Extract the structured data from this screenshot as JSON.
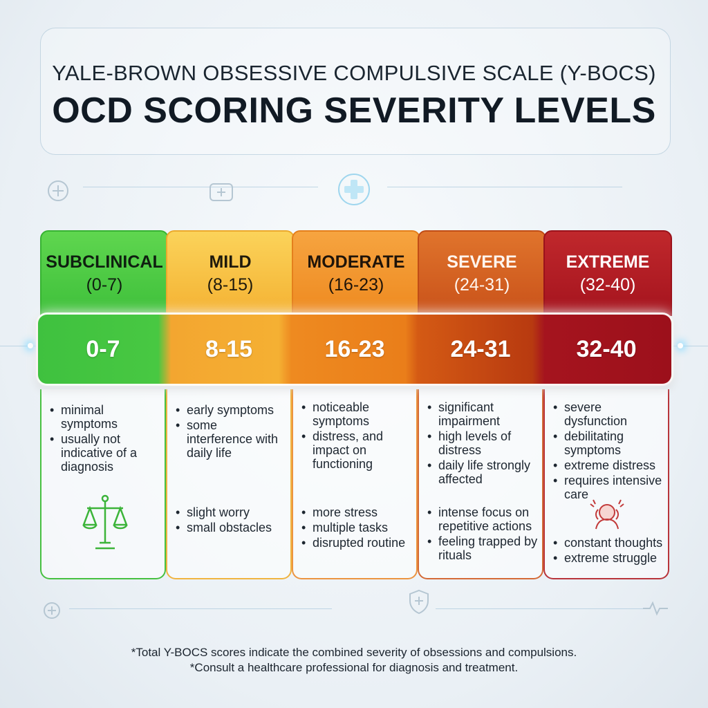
{
  "header": {
    "title_line1": "YALE-BROWN OBSESSIVE COMPULSIVE SCALE (Y-BOCS)",
    "title_line2": "OCD SCORING SEVERITY LEVELS"
  },
  "levels": [
    {
      "name": "SUBCLINICAL",
      "range_label": "(0-7)",
      "score": "0-7",
      "color": "#43c43f",
      "symptoms_top": [
        "minimal symptoms",
        "usually not indicative of a diagnosis"
      ],
      "symptoms_bottom": [],
      "icon": "balance-scale-icon"
    },
    {
      "name": "MILD",
      "range_label": "(8-15)",
      "score": "8-15",
      "color": "#f4b233",
      "symptoms_top": [
        "early symptoms",
        "some interference with daily life"
      ],
      "symptoms_bottom": [
        "slight worry",
        "small obstacles"
      ]
    },
    {
      "name": "MODERATE",
      "range_label": "(16-23)",
      "score": "16-23",
      "color": "#ee8a20",
      "symptoms_top": [
        "noticeable symptoms",
        "distress, and impact on functioning"
      ],
      "symptoms_bottom": [
        "more stress",
        "multiple tasks",
        "disrupted routine"
      ]
    },
    {
      "name": "SEVERE",
      "range_label": "(24-31)",
      "score": "24-31",
      "color": "#d45a14",
      "symptoms_top": [
        "significant impairment",
        "high levels of distress",
        "daily life strongly affected"
      ],
      "symptoms_bottom": [
        "intense focus on repetitive actions",
        "feeling trapped by rituals"
      ]
    },
    {
      "name": "EXTREME",
      "range_label": "(32-40)",
      "score": "32-40",
      "color": "#a5141e",
      "symptoms_top": [
        "severe dysfunction",
        "debilitating symptoms",
        "extreme distress",
        "requires intensive care"
      ],
      "symptoms_bottom": [
        "constant thoughts",
        "extreme struggle"
      ],
      "icon": "distressed-person-icon"
    }
  ],
  "footer": {
    "note1": "*Total Y-BOCS scores indicate the combined severity of obsessions and compulsions.",
    "note2": "*Consult a healthcare professional for diagnosis and treatment."
  }
}
